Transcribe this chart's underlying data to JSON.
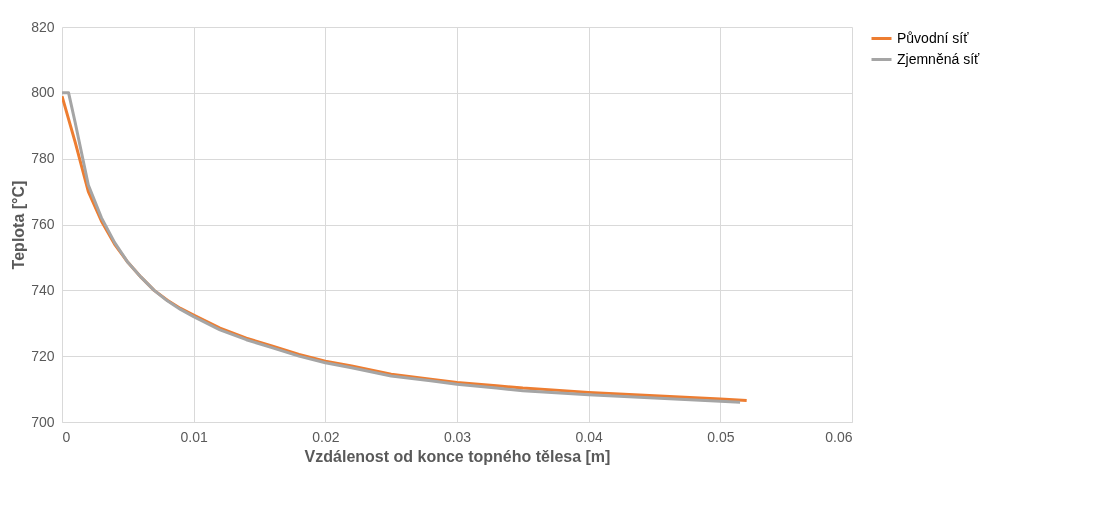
{
  "chart_data": {
    "type": "line",
    "xlabel": "Vzdálenost od konce topného tělesa [m]",
    "ylabel": "Teplota [°C]",
    "xlim": [
      0,
      0.06
    ],
    "xticks": [
      0,
      0.01,
      0.02,
      0.03,
      0.04,
      0.05,
      0.06
    ],
    "ylim": [
      700,
      820
    ],
    "yticks": [
      700,
      720,
      740,
      760,
      780,
      800,
      820
    ],
    "grid": true,
    "legend": "right",
    "line_style": "solid",
    "marker": "none",
    "series": [
      {
        "name": "Původní síť",
        "color": "#ed7d31",
        "x": [
          0,
          0.001,
          0.002,
          0.003,
          0.004,
          0.005,
          0.006,
          0.007,
          0.008,
          0.009,
          0.01,
          0.012,
          0.014,
          0.016,
          0.018,
          0.02,
          0.022,
          0.025,
          0.028,
          0.03,
          0.033,
          0.035,
          0.04,
          0.045,
          0.05,
          0.052
        ],
        "values": [
          799,
          785,
          770,
          761,
          754,
          748.5,
          744,
          740,
          737,
          734.5,
          732.5,
          728.5,
          725.5,
          723,
          720.5,
          718.5,
          717,
          714.5,
          713,
          712,
          711,
          710.3,
          709,
          708,
          707,
          706.5
        ]
      },
      {
        "name": "Zjemněná síť",
        "color": "#a5a5a5",
        "x": [
          0,
          0.0005,
          0.001,
          0.002,
          0.003,
          0.004,
          0.005,
          0.006,
          0.007,
          0.008,
          0.009,
          0.01,
          0.012,
          0.014,
          0.016,
          0.018,
          0.02,
          0.022,
          0.025,
          0.028,
          0.03,
          0.033,
          0.035,
          0.04,
          0.045,
          0.05,
          0.0515
        ],
        "values": [
          800,
          800,
          791,
          772,
          762,
          754.5,
          748.5,
          744,
          740,
          736.8,
          734.2,
          732,
          728,
          725,
          722.5,
          720,
          718,
          716.5,
          714,
          712.5,
          711.5,
          710.3,
          709.5,
          708.3,
          707.3,
          706.3,
          706
        ]
      }
    ]
  }
}
